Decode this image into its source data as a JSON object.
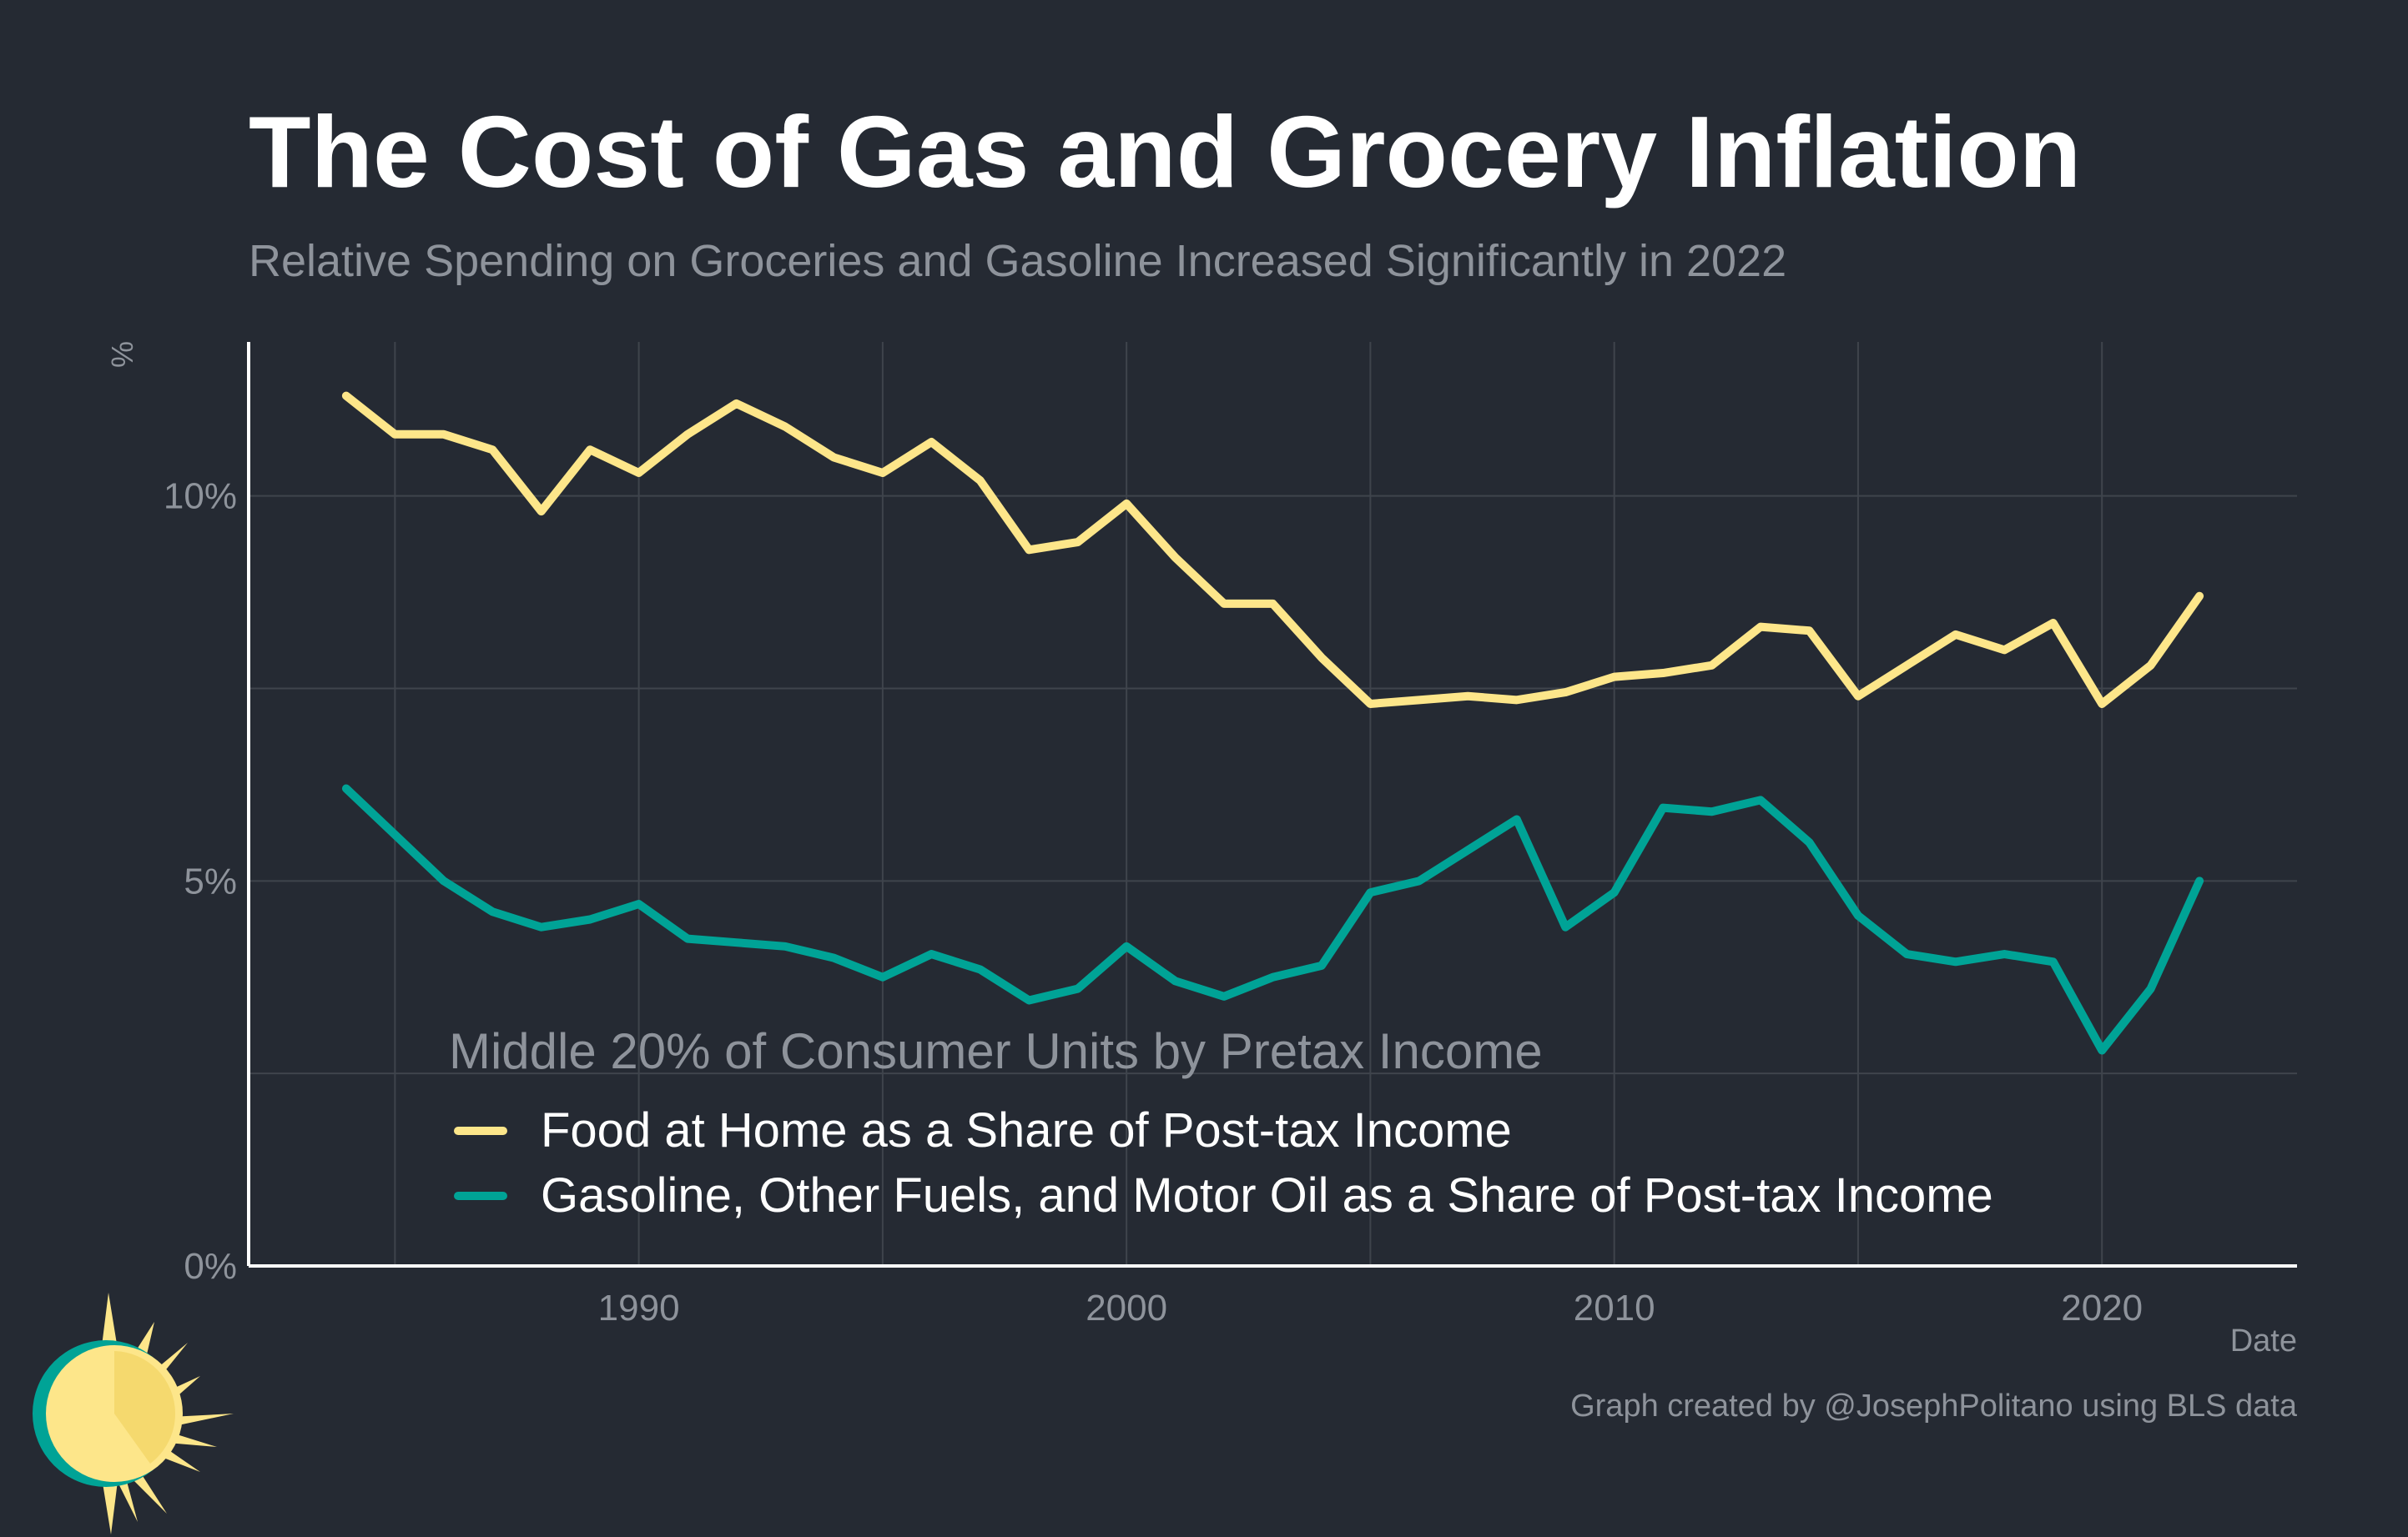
{
  "title": "The Cost of Gas and Grocery Inflation",
  "subtitle": "Relative Spending on Groceries and Gasoline Increased Significantly in 2022",
  "credit": "Graph created by @JosephPolitano using BLS data",
  "colors": {
    "background": "#252a33",
    "food": "#fde68a",
    "gas": "#00a396",
    "grid": "#3f444c",
    "axis": "#ffffff",
    "muted": "#8e939b"
  },
  "chart_data": {
    "type": "line",
    "title": "The Cost of Gas and Grocery Inflation",
    "subtitle": "Relative Spending on Groceries and Gasoline Increased Significantly in 2022",
    "xlabel": "Date",
    "ylabel": "%",
    "xlim": [
      1982,
      2024
    ],
    "ylim": [
      0,
      12
    ],
    "x_ticks": [
      1990,
      2000,
      2010,
      2020
    ],
    "y_ticks": [
      0,
      5,
      10
    ],
    "y_tick_labels": [
      "0%",
      "5%",
      "10%"
    ],
    "grid": true,
    "legend_title": "Middle 20% of Consumer Units by Pretax Income",
    "legend_position": "bottom-left",
    "x": [
      1984,
      1985,
      1986,
      1987,
      1988,
      1989,
      1990,
      1991,
      1992,
      1993,
      1994,
      1995,
      1996,
      1997,
      1998,
      1999,
      2000,
      2001,
      2002,
      2003,
      2004,
      2005,
      2006,
      2007,
      2008,
      2009,
      2010,
      2011,
      2012,
      2013,
      2014,
      2015,
      2016,
      2017,
      2018,
      2019,
      2020,
      2021,
      2022
    ],
    "series": [
      {
        "name": "Food at Home as a Share of Post-tax Income",
        "color": "#fde68a",
        "values": [
          11.3,
          10.8,
          10.8,
          10.6,
          9.8,
          10.6,
          10.3,
          10.8,
          11.2,
          10.9,
          10.5,
          10.3,
          10.7,
          10.2,
          9.3,
          9.4,
          9.9,
          9.2,
          8.6,
          8.6,
          7.9,
          7.3,
          7.35,
          7.4,
          7.35,
          7.45,
          7.65,
          7.7,
          7.8,
          8.3,
          8.25,
          7.4,
          7.8,
          8.2,
          8.0,
          8.35,
          7.3,
          7.8,
          8.7
        ]
      },
      {
        "name": "Gasoline, Other Fuels, and Motor Oil as a Share of Post-tax Income",
        "color": "#00a396",
        "values": [
          6.2,
          5.6,
          5.0,
          4.6,
          4.4,
          4.5,
          4.7,
          4.25,
          4.2,
          4.15,
          4.0,
          3.75,
          4.05,
          3.85,
          3.45,
          3.6,
          4.15,
          3.7,
          3.5,
          3.75,
          3.9,
          4.85,
          5.0,
          5.4,
          5.8,
          4.4,
          4.85,
          5.95,
          5.9,
          6.05,
          5.5,
          4.55,
          4.05,
          3.95,
          4.05,
          3.95,
          2.8,
          3.6,
          5.0
        ]
      }
    ]
  }
}
